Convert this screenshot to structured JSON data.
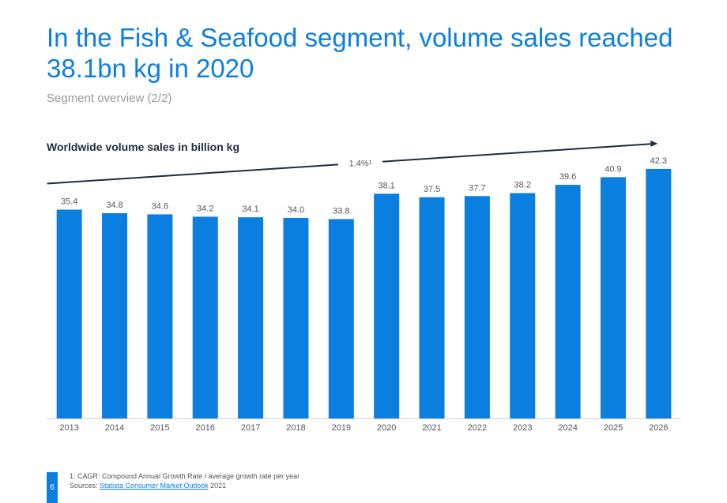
{
  "header": {
    "title": "In the Fish & Seafood segment, volume sales reached 38.1bn kg in 2020",
    "subtitle": "Segment overview (2/2)"
  },
  "footer": {
    "page_number": "6",
    "footnote": "1: CAGR: Compound Annual Growth Rate / average growth rate per year",
    "sources_prefix": "Sources: ",
    "sources_link": "Statista Consumer Market Outlook",
    "sources_suffix": " 2021"
  },
  "colors": {
    "accent": "#0b7fe0",
    "text": "#1f2d3d",
    "muted": "#9a9a9a"
  },
  "chart_data": {
    "type": "bar",
    "title": "Worldwide volume sales in billion kg",
    "xlabel": "",
    "ylabel": "",
    "categories": [
      "2013",
      "2014",
      "2015",
      "2016",
      "2017",
      "2018",
      "2019",
      "2020",
      "2021",
      "2022",
      "2023",
      "2024",
      "2025",
      "2026"
    ],
    "values": [
      35.4,
      34.8,
      34.6,
      34.2,
      34.1,
      34.0,
      33.8,
      38.1,
      37.5,
      37.7,
      38.2,
      39.6,
      40.9,
      42.3
    ],
    "value_labels": [
      "35.4",
      "34.8",
      "34.6",
      "34.2",
      "34.1",
      "34.0",
      "33.8",
      "38.1",
      "37.5",
      "37.7",
      "38.2",
      "39.6",
      "40.9",
      "42.3"
    ],
    "ylim": [
      0,
      45.5
    ],
    "grid": false,
    "bar_color": "#0b7fe0",
    "annotation": {
      "label": "1.4%¹"
    }
  }
}
